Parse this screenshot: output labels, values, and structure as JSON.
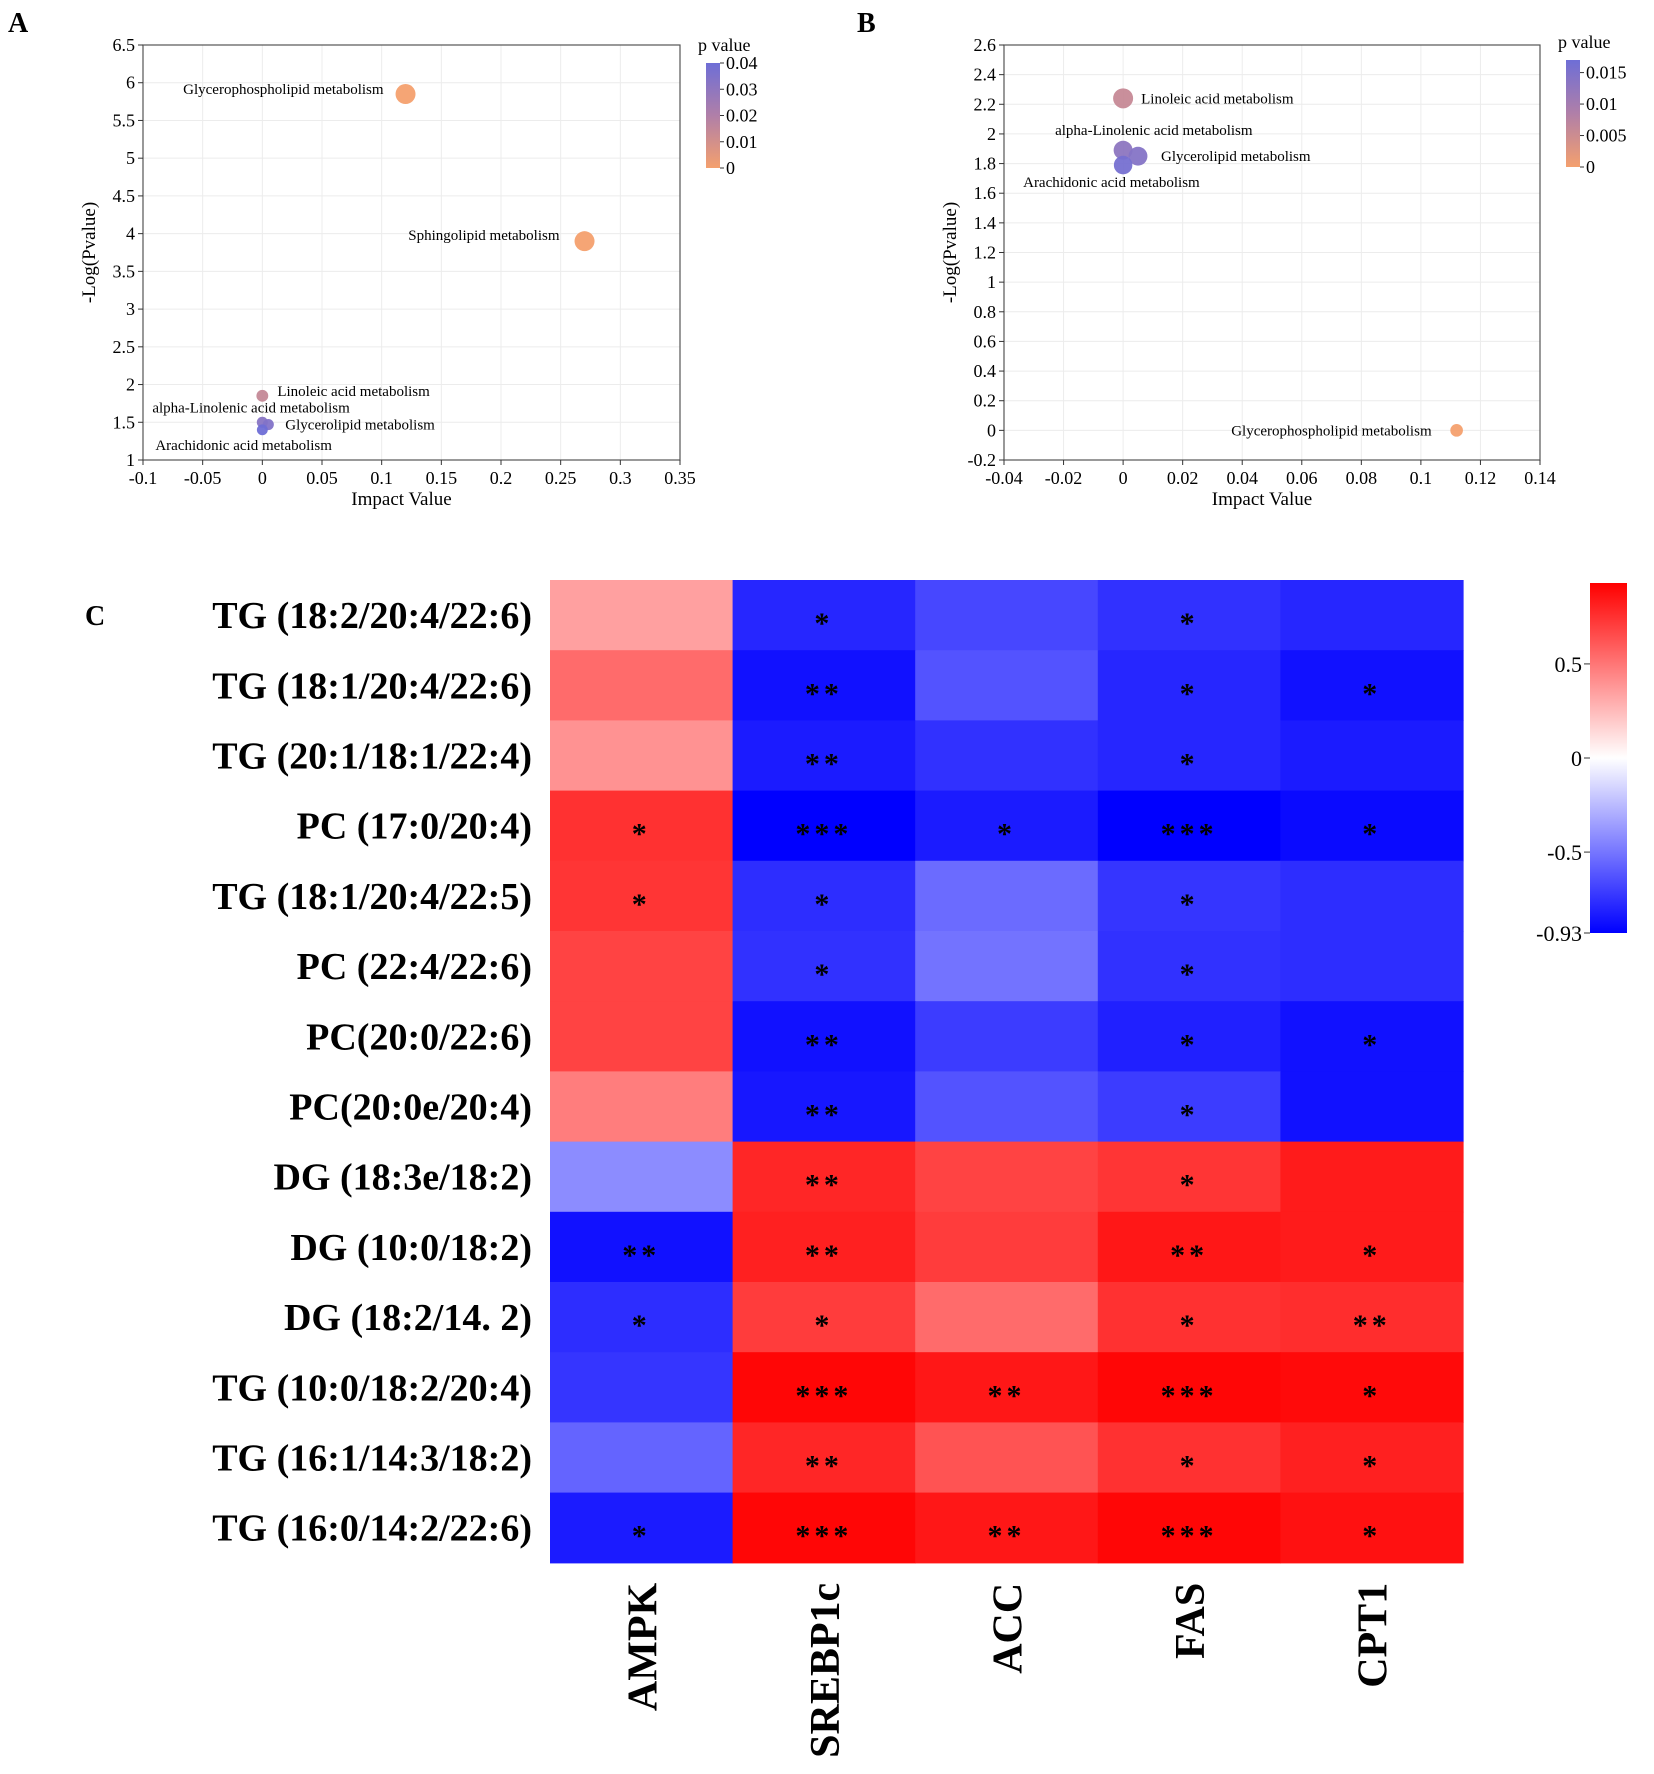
{
  "panels": {
    "A": "A",
    "B": "B",
    "C": "C"
  },
  "chart_data": [
    {
      "id": "A",
      "type": "scatter",
      "xlabel": "Impact Value",
      "ylabel": "-Log(Pvalue)",
      "xlim": [
        -0.1,
        0.35
      ],
      "ylim": [
        1,
        6.5
      ],
      "xticks": [
        "-0.1",
        "-0.05",
        "0",
        "0.05",
        "0.1",
        "0.15",
        "0.2",
        "0.25",
        "0.3",
        "0.35"
      ],
      "yticks": [
        "1",
        "1.5",
        "2",
        "2.5",
        "3",
        "3.5",
        "4",
        "4.5",
        "5",
        "5.5",
        "6",
        "6.5"
      ],
      "legend_title": "p value",
      "legend_ticks": [
        "0.04",
        "0.03",
        "0.02",
        "0.01",
        "0"
      ],
      "legend_range": [
        0,
        0.04
      ],
      "points": [
        {
          "label": "Glycerophospholipid metabolism",
          "x": 0.12,
          "y": 5.85,
          "p": 1.4e-06
        },
        {
          "label": "Sphingolipid metabolism",
          "x": 0.27,
          "y": 3.9,
          "p": 0.00013
        },
        {
          "label": "Linoleic acid metabolism",
          "x": 0.0,
          "y": 1.85,
          "p": 0.014
        },
        {
          "label": "alpha-Linolenic acid metabolism",
          "x": 0.0,
          "y": 1.5,
          "p": 0.032
        },
        {
          "label": "Glycerolipid metabolism",
          "x": 0.005,
          "y": 1.47,
          "p": 0.034
        },
        {
          "label": "Arachidonic acid metabolism",
          "x": 0.0,
          "y": 1.4,
          "p": 0.04
        }
      ]
    },
    {
      "id": "B",
      "type": "scatter",
      "xlabel": "Impact Value",
      "ylabel": "-Log(Pvalue)",
      "xlim": [
        -0.04,
        0.14
      ],
      "ylim": [
        -0.2,
        2.6
      ],
      "xticks": [
        "-0.04",
        "-0.02",
        "0",
        "0.02",
        "0.04",
        "0.06",
        "0.08",
        "0.1",
        "0.12",
        "0.14"
      ],
      "yticks": [
        "-0.2",
        "0",
        "0.2",
        "0.4",
        "0.6",
        "0.8",
        "1",
        "1.2",
        "1.4",
        "1.6",
        "1.8",
        "2",
        "2.2",
        "2.4",
        "2.6"
      ],
      "legend_title": "p value",
      "legend_ticks": [
        "0.015",
        "0.01",
        "0.005",
        "0"
      ],
      "legend_range": [
        0,
        0.017
      ],
      "points": [
        {
          "label": "Linoleic acid metabolism",
          "x": 0.0,
          "y": 2.24,
          "p": 0.0058
        },
        {
          "label": "alpha-Linolenic acid metabolism",
          "x": 0.0,
          "y": 1.89,
          "p": 0.013
        },
        {
          "label": "Glycerolipid metabolism",
          "x": 0.005,
          "y": 1.85,
          "p": 0.014
        },
        {
          "label": "Arachidonic acid metabolism",
          "x": 0.0,
          "y": 1.79,
          "p": 0.016
        },
        {
          "label": "Glycerophospholipid metabolism",
          "x": 0.112,
          "y": 0.0,
          "p": 0.0
        }
      ]
    },
    {
      "id": "C",
      "type": "heatmap",
      "rows": [
        "TG (18:2/20:4/22:6)",
        "TG (18:1/20:4/22:6)",
        "TG (20:1/18:1/22:4)",
        "PC (17:0/20:4)",
        "TG (18:1/20:4/22:5)",
        "PC (22:4/22:6)",
        "PC(20:0/22:6)",
        "PC(20:0e/20:4)",
        "DG (18:3e/18:2)",
        "DG (10:0/18:2)",
        "DG (18:2/14. 2)",
        "TG (10:0/18:2/20:4)",
        "TG (16:1/14:3/18:2)",
        "TG (16:0/14:2/22:6)"
      ],
      "columns": [
        "AMPK",
        "SREBP1c",
        "ACC",
        "FAS",
        "CPT1"
      ],
      "values": [
        [
          0.25,
          -0.75,
          -0.6,
          -0.7,
          -0.75
        ],
        [
          0.45,
          -0.85,
          -0.55,
          -0.75,
          -0.85
        ],
        [
          0.3,
          -0.8,
          -0.7,
          -0.75,
          -0.8
        ],
        [
          0.7,
          -0.93,
          -0.8,
          -0.93,
          -0.88
        ],
        [
          0.68,
          -0.72,
          -0.45,
          -0.68,
          -0.72
        ],
        [
          0.62,
          -0.7,
          -0.42,
          -0.7,
          -0.72
        ],
        [
          0.62,
          -0.85,
          -0.65,
          -0.78,
          -0.85
        ],
        [
          0.38,
          -0.82,
          -0.55,
          -0.65,
          -0.85
        ],
        [
          -0.32,
          0.75,
          0.62,
          0.68,
          0.8
        ],
        [
          -0.85,
          0.78,
          0.65,
          0.82,
          0.8
        ],
        [
          -0.72,
          0.65,
          0.45,
          0.7,
          0.72
        ],
        [
          -0.68,
          0.9,
          0.82,
          0.9,
          0.88
        ],
        [
          -0.48,
          0.75,
          0.55,
          0.7,
          0.78
        ],
        [
          -0.8,
          0.9,
          0.82,
          0.9,
          0.85
        ]
      ],
      "significance": [
        [
          "",
          "*",
          "",
          "*",
          ""
        ],
        [
          "",
          "**",
          "",
          "*",
          "*"
        ],
        [
          "",
          "**",
          "",
          "*",
          ""
        ],
        [
          "*",
          "***",
          "*",
          "***",
          "*"
        ],
        [
          "*",
          "*",
          "",
          "*",
          ""
        ],
        [
          "",
          "*",
          "",
          "*",
          ""
        ],
        [
          "",
          "**",
          "",
          "*",
          "*"
        ],
        [
          "",
          "**",
          "",
          "*",
          ""
        ],
        [
          "",
          "**",
          "",
          "*",
          ""
        ],
        [
          "**",
          "**",
          "",
          "**",
          "*"
        ],
        [
          "*",
          "*",
          "",
          "*",
          "**"
        ],
        [
          "",
          "***",
          "**",
          "***",
          "*"
        ],
        [
          "",
          "**",
          "",
          "*",
          "*"
        ],
        [
          "*",
          "***",
          "**",
          "***",
          "*"
        ]
      ],
      "white_stars": [
        [
          3,
          1
        ],
        [
          3,
          4
        ],
        [
          11,
          1
        ],
        [
          11,
          4
        ]
      ],
      "colorbar_range": [
        -0.93,
        0.93
      ],
      "colorbar_ticks": [
        {
          "label": "0.5",
          "value": 0.5
        },
        {
          "label": "0",
          "value": 0
        },
        {
          "label": "-0.5",
          "value": -0.5
        },
        {
          "label": "-0.93",
          "value": -0.93
        }
      ]
    }
  ]
}
